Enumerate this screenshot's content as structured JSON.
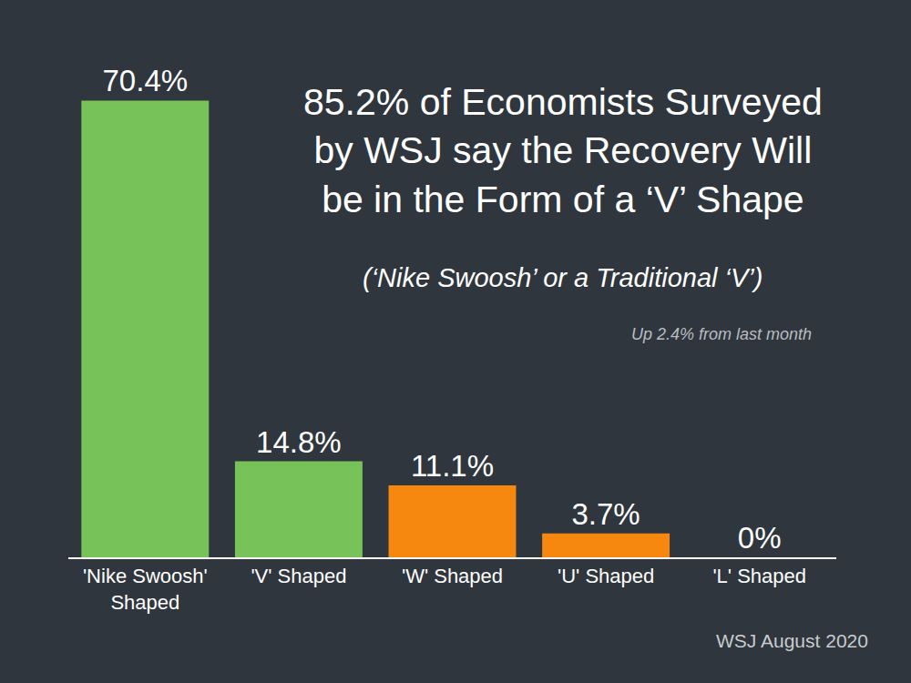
{
  "chart_data": {
    "type": "bar",
    "title": "85.2% of Economists Surveyed by WSJ say the Recovery Will be in the Form of a ‘V’ Shape",
    "subtitle": "(‘Nike Swoosh’ or a Traditional ‘V’)",
    "annotations": [
      "Up 2.4% from last month",
      "WSJ August 2020"
    ],
    "categories": [
      "'Nike Swoosh' Shaped",
      "'V' Shaped",
      "'W' Shaped",
      "'U' Shaped",
      "'L' Shaped"
    ],
    "values": [
      70.4,
      14.8,
      11.1,
      3.7,
      0
    ],
    "value_labels": [
      "70.4%",
      "14.8%",
      "11.1%",
      "3.7%",
      "0%"
    ],
    "colors": [
      "#77c35a",
      "#77c35a",
      "#f7880f",
      "#f7880f",
      "#f7880f"
    ],
    "ylim": [
      0,
      80
    ],
    "data_labels": true,
    "tick_labels": "x",
    "grid": false
  }
}
